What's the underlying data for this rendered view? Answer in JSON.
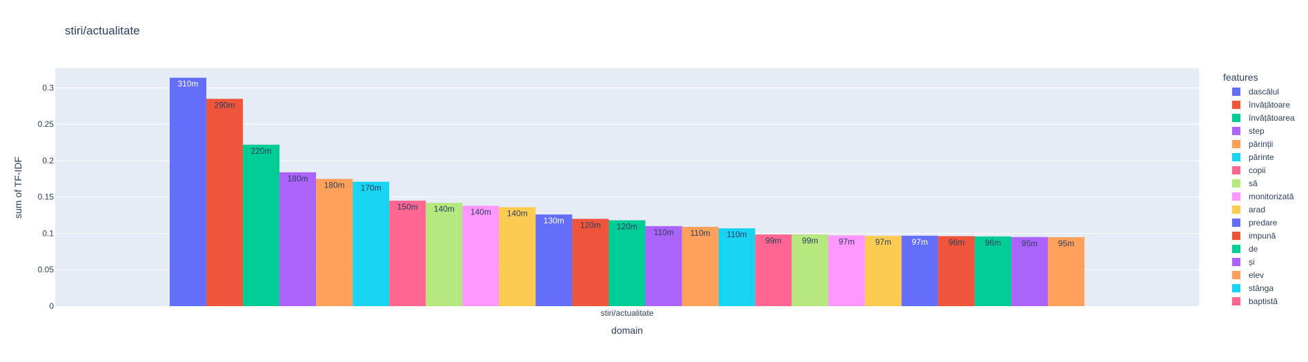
{
  "chart_data": {
    "type": "bar",
    "title": "stiri/actualitate",
    "xlabel": "domain",
    "ylabel": "sum of TF-IDF",
    "categories": [
      "stiri/actualitate"
    ],
    "ylim": [
      0,
      0.327
    ],
    "yticks": [
      0,
      0.05,
      0.1,
      0.15,
      0.2,
      0.25,
      0.3
    ],
    "ytick_labels": [
      "0",
      "0.05",
      "0.1",
      "0.15",
      "0.2",
      "0.25",
      "0.3"
    ],
    "grid": true,
    "legend_title": "features",
    "legend_position": "right",
    "series": [
      {
        "name": "dascălul",
        "values": [
          0.314
        ],
        "label": "310m",
        "color": "#636efa"
      },
      {
        "name": "învățătoare",
        "values": [
          0.285
        ],
        "label": "290m",
        "color": "#EF553B"
      },
      {
        "name": "învățătoarea",
        "values": [
          0.222
        ],
        "label": "220m",
        "color": "#00cc96"
      },
      {
        "name": "step",
        "values": [
          0.184
        ],
        "label": "180m",
        "color": "#ab63fa"
      },
      {
        "name": "părinții",
        "values": [
          0.175
        ],
        "label": "180m",
        "color": "#FFA15A"
      },
      {
        "name": "părinte",
        "values": [
          0.171
        ],
        "label": "170m",
        "color": "#19d3f3"
      },
      {
        "name": "copii",
        "values": [
          0.145
        ],
        "label": "150m",
        "color": "#FF6692"
      },
      {
        "name": "să",
        "values": [
          0.142
        ],
        "label": "140m",
        "color": "#B6E880"
      },
      {
        "name": "monitorizată",
        "values": [
          0.138
        ],
        "label": "140m",
        "color": "#FF97FF"
      },
      {
        "name": "arad",
        "values": [
          0.136
        ],
        "label": "140m",
        "color": "#FECB52"
      },
      {
        "name": "predare",
        "values": [
          0.126
        ],
        "label": "130m",
        "color": "#636efa"
      },
      {
        "name": "impună",
        "values": [
          0.12
        ],
        "label": "120m",
        "color": "#EF553B"
      },
      {
        "name": "de",
        "values": [
          0.118
        ],
        "label": "120m",
        "color": "#00cc96"
      },
      {
        "name": "și",
        "values": [
          0.11
        ],
        "label": "110m",
        "color": "#ab63fa"
      },
      {
        "name": "elev",
        "values": [
          0.109
        ],
        "label": "110m",
        "color": "#FFA15A"
      },
      {
        "name": "stânga",
        "values": [
          0.107
        ],
        "label": "110m",
        "color": "#19d3f3"
      },
      {
        "name": "baptistă",
        "values": [
          0.0985
        ],
        "label": "99m",
        "color": "#FF6692"
      },
      {
        "name": "",
        "values": [
          0.0985
        ],
        "label": "99m",
        "color": "#B6E880"
      },
      {
        "name": "",
        "values": [
          0.0972
        ],
        "label": "97m",
        "color": "#FF97FF"
      },
      {
        "name": "",
        "values": [
          0.0966
        ],
        "label": "97m",
        "color": "#FECB52"
      },
      {
        "name": "",
        "values": [
          0.0968
        ],
        "label": "97m",
        "color": "#636efa"
      },
      {
        "name": "",
        "values": [
          0.0962
        ],
        "label": "96m",
        "color": "#EF553B"
      },
      {
        "name": "",
        "values": [
          0.0958
        ],
        "label": "96m",
        "color": "#00cc96"
      },
      {
        "name": "",
        "values": [
          0.095
        ],
        "label": "95m",
        "color": "#ab63fa"
      },
      {
        "name": "",
        "values": [
          0.0948
        ],
        "label": "95m",
        "color": "#FFA15A"
      }
    ]
  },
  "legend": {
    "title": "features",
    "items": [
      "dascălul",
      "învățătoare",
      "învățătoarea",
      "step",
      "părinții",
      "părinte",
      "copii",
      "să",
      "monitorizată",
      "arad",
      "predare",
      "impună",
      "de",
      "și",
      "elev",
      "stânga",
      "baptistă"
    ]
  }
}
